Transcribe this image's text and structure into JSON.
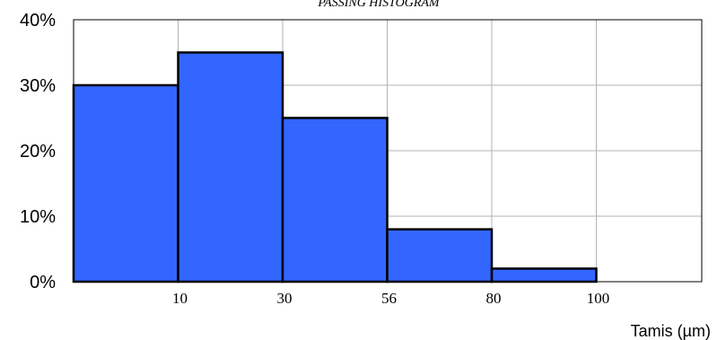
{
  "chart_data": {
    "type": "bar",
    "title": "PASSING HISTOGRAM",
    "xlabel": "Tamis (µm)",
    "ylabel": "",
    "categories": [
      "0-10",
      "10-30",
      "30-56",
      "56-80",
      "80-100"
    ],
    "values": [
      30,
      35,
      25,
      8,
      2
    ],
    "x_tick_labels": [
      "10",
      "30",
      "56",
      "80",
      "100"
    ],
    "y_tick_labels": [
      "0%",
      "10%",
      "20%",
      "30%",
      "40%"
    ],
    "ylim": [
      0,
      40
    ],
    "grid": true,
    "bar_color": "#3366FF",
    "legend": "none"
  }
}
